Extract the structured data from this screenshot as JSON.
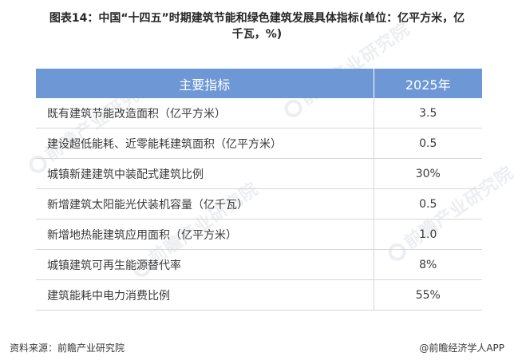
{
  "title": {
    "line1": "图表14：中国“十四五”时期建筑节能和绿色建筑发展具体指标(单位：亿平方米，亿",
    "line2": "千瓦，%)"
  },
  "table": {
    "headers": [
      "主要指标",
      "2025年"
    ],
    "rows": [
      {
        "indicator": "既有建筑节能改造面积（亿平方米）",
        "value": "3.5"
      },
      {
        "indicator": "建设超低能耗、近零能耗建筑面积（亿平方米）",
        "value": "0.5"
      },
      {
        "indicator": "城镇新建建筑中装配式建筑比例",
        "value": "30%"
      },
      {
        "indicator": "新增建筑太阳能光伏装机容量（亿千瓦）",
        "value": "0.5"
      },
      {
        "indicator": "新增地热能建筑应用面积（亿平方米）",
        "value": "1.0"
      },
      {
        "indicator": "城镇建筑可再生能源替代率",
        "value": "8%"
      },
      {
        "indicator": "建筑能耗中电力消费比例",
        "value": "55%"
      }
    ]
  },
  "footer": {
    "source": "资料来源：前瞻产业研究院",
    "app": "@前瞻经济学人APP"
  },
  "watermark": {
    "text": "前瞻产业研究院"
  },
  "colors": {
    "header_bg": "#6d98d5",
    "header_text": "#ffffff",
    "border": "#d7d7d7"
  }
}
